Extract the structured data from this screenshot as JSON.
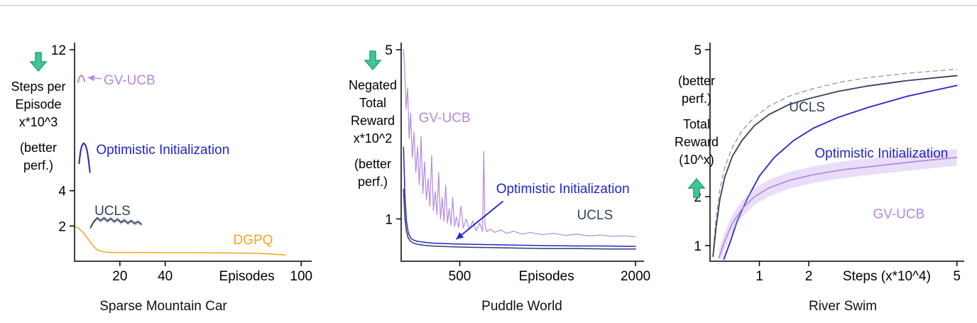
{
  "page": {
    "background": "#ffffff",
    "top_rule_color": "#c4c4c4"
  },
  "colors": {
    "gvucb": "#b18ae0",
    "opt_init": "#2424cf",
    "ucls": "#33415c",
    "dgpq": "#f5a321",
    "dashed": "#979797",
    "arrow_green": "#3ec794",
    "arrow_green_edge": "#1fa377",
    "axis": "#000000"
  },
  "chart_data": [
    {
      "type": "line",
      "title": "Sparse Mountain Car",
      "xlabel": "Episodes",
      "xlabel_at": 76,
      "ylabel_lines": [
        "Steps per",
        "Episode",
        "x*10^3"
      ],
      "better_note_lines": [
        "(better",
        "perf.)"
      ],
      "better_direction": "down",
      "xlim": [
        0,
        104
      ],
      "ylim": [
        0,
        12
      ],
      "xticks": [
        20,
        40,
        100
      ],
      "yticks": [
        2,
        4,
        12
      ],
      "grid": false,
      "legend_position": "inline-annotations",
      "series": [
        {
          "name": "GV-UCB",
          "color_key": "gvucb",
          "width": 2,
          "x": [
            1.5,
            2.2,
            3,
            3.8,
            4.5
          ],
          "y": [
            10.15,
            10.45,
            10.55,
            10.45,
            10.2
          ]
        },
        {
          "name": "Optimistic Initialization",
          "color_key": "opt_init",
          "width": 2,
          "x": [
            2,
            2.6,
            3.2,
            4,
            4.8,
            5.6,
            6.2,
            6.8
          ],
          "y": [
            5.55,
            6.2,
            6.55,
            6.7,
            6.6,
            6.25,
            5.7,
            5.05
          ]
        },
        {
          "name": "UCLS",
          "color_key": "ucls",
          "width": 1.7,
          "band": 0.13,
          "band_color": "rgba(110,120,140,0.3)",
          "x": [
            7,
            8.5,
            10,
            11.5,
            13,
            14.5,
            16,
            17.5,
            19,
            20.5,
            22,
            23.5,
            25,
            26.5,
            28,
            29.5
          ],
          "y": [
            1.9,
            2.25,
            2.45,
            2.3,
            2.45,
            2.28,
            2.42,
            2.25,
            2.38,
            2.2,
            2.33,
            2.16,
            2.3,
            2.14,
            2.24,
            2.1
          ]
        },
        {
          "name": "DGPQ",
          "color_key": "dgpq",
          "width": 1.5,
          "x": [
            0.5,
            2,
            4,
            6,
            8,
            10,
            12,
            15,
            20,
            30,
            40,
            50,
            60,
            70,
            80,
            88,
            93
          ],
          "y": [
            1.95,
            1.85,
            1.6,
            1.25,
            0.9,
            0.65,
            0.55,
            0.5,
            0.5,
            0.5,
            0.49,
            0.49,
            0.48,
            0.47,
            0.45,
            0.4,
            0.35
          ]
        }
      ],
      "annotations": [
        {
          "text": "GV-UCB",
          "color_key": "gvucb",
          "x": 12.8,
          "y": 10.02,
          "anchor": "start",
          "arrow_from": [
            12,
            10.35
          ],
          "arrow_to": [
            5.8,
            10.42
          ],
          "arrow_width": 1.4
        },
        {
          "text": "Optimistic Initialization",
          "color_key": "opt_init",
          "x": 9.5,
          "y": 6.08,
          "anchor": "start"
        },
        {
          "text": "UCLS",
          "color_key": "ucls",
          "x": 8.8,
          "y": 2.62,
          "anchor": "start"
        },
        {
          "text": "DGPQ",
          "color_key": "dgpq",
          "x": 70,
          "y": 0.97,
          "anchor": "start"
        }
      ]
    },
    {
      "type": "line",
      "title": "Puddle World",
      "xlabel": "Episodes",
      "xlabel_at": 1240,
      "ylabel_lines": [
        "Negated",
        "Total",
        "Reward",
        "x*10^2"
      ],
      "better_note_lines": [
        "(better",
        "perf.)"
      ],
      "better_direction": "down",
      "xlim": [
        0,
        2060
      ],
      "ylim": [
        0,
        5
      ],
      "xticks": [
        500,
        2000
      ],
      "yticks": [
        1,
        5
      ],
      "grid": false,
      "legend_position": "inline-annotations",
      "series": [
        {
          "name": "GV-UCB",
          "color_key": "gvucb",
          "width": 1.2,
          "x": [
            20,
            30,
            42,
            55,
            68,
            80,
            95,
            110,
            125,
            140,
            155,
            170,
            185,
            200,
            215,
            230,
            245,
            260,
            275,
            290,
            305,
            320,
            335,
            350,
            365,
            380,
            395,
            410,
            425,
            440,
            455,
            470,
            490,
            510,
            530,
            555,
            580,
            610,
            640,
            670,
            695,
            705,
            715,
            730,
            760,
            800,
            850,
            900,
            960,
            1030,
            1100,
            1200,
            1300,
            1400,
            1500,
            1600,
            1700,
            1800,
            1900,
            2000
          ],
          "y": [
            5.0,
            4.55,
            3.6,
            4.1,
            2.9,
            3.5,
            2.45,
            3.05,
            2.1,
            2.7,
            1.8,
            2.95,
            1.6,
            2.35,
            1.45,
            1.95,
            1.3,
            2.5,
            1.2,
            1.65,
            1.1,
            2.1,
            1.0,
            1.5,
            0.95,
            1.8,
            0.9,
            1.25,
            0.85,
            1.5,
            0.82,
            1.05,
            0.8,
            1.3,
            0.78,
            1.0,
            0.75,
            0.95,
            0.72,
            0.9,
            0.7,
            2.6,
            0.85,
            0.7,
            0.76,
            0.68,
            0.74,
            0.66,
            0.71,
            0.64,
            0.68,
            0.63,
            0.66,
            0.61,
            0.64,
            0.6,
            0.62,
            0.59,
            0.6,
            0.58
          ]
        },
        {
          "name": "Optimistic Initialization",
          "color_key": "opt_init",
          "width": 1.5,
          "x": [
            20,
            32,
            45,
            60,
            80,
            105,
            140,
            190,
            260,
            350,
            450,
            600,
            800,
            1000,
            1250,
            1500,
            1750,
            2000
          ],
          "y": [
            2.7,
            1.55,
            0.95,
            0.68,
            0.55,
            0.5,
            0.47,
            0.45,
            0.43,
            0.42,
            0.41,
            0.4,
            0.39,
            0.38,
            0.37,
            0.36,
            0.36,
            0.35
          ]
        },
        {
          "name": "UCLS",
          "color_key": "ucls",
          "width": 1.5,
          "x": [
            20,
            32,
            45,
            60,
            80,
            105,
            140,
            190,
            260,
            350,
            450,
            600,
            800,
            1000,
            1250,
            1500,
            1750,
            2000
          ],
          "y": [
            1.7,
            1.0,
            0.7,
            0.55,
            0.47,
            0.43,
            0.4,
            0.38,
            0.36,
            0.35,
            0.34,
            0.33,
            0.32,
            0.31,
            0.3,
            0.3,
            0.29,
            0.29
          ]
        }
      ],
      "annotations": [
        {
          "text": "GV-UCB",
          "color_key": "gvucb",
          "x": 150,
          "y": 3.29,
          "anchor": "start"
        },
        {
          "text": "Optimistic Initialization",
          "color_key": "opt_init",
          "x": 810,
          "y": 1.61,
          "anchor": "start",
          "arrow_from": [
            870,
            1.42
          ],
          "arrow_to": [
            470,
            0.52
          ],
          "arrow_width": 1.8
        },
        {
          "text": "UCLS",
          "color_key": "ucls",
          "x": 1500,
          "y": 0.99,
          "anchor": "start"
        }
      ]
    },
    {
      "type": "line",
      "title": "River Swim",
      "xlabel": "Steps (x*10^4)",
      "xlabel_at": 3.58,
      "ylabel_lines": [
        "Total",
        "Reward",
        "(10^x)"
      ],
      "better_note_lines": [
        "(better",
        "perf.)"
      ],
      "better_direction": "up",
      "xlim": [
        0,
        5.12
      ],
      "ylim": [
        0.68,
        5
      ],
      "xticks": [
        1,
        2,
        5
      ],
      "yticks": [
        1,
        2,
        5
      ],
      "grid": false,
      "legend_position": "inline-annotations",
      "series": [
        {
          "name": "dashed-reference",
          "color_key": "dashed",
          "width": 1.3,
          "dash": "6,5",
          "x": [
            0.07,
            0.12,
            0.2,
            0.3,
            0.45,
            0.65,
            0.9,
            1.2,
            1.6,
            2.0,
            2.6,
            3.2,
            4.0,
            5.0
          ],
          "y": [
            0.95,
            1.55,
            2.15,
            2.6,
            3.0,
            3.35,
            3.62,
            3.85,
            4.05,
            4.18,
            4.33,
            4.43,
            4.52,
            4.6
          ]
        },
        {
          "name": "UCLS",
          "color_key": "ucls",
          "width": 1.8,
          "x": [
            0.06,
            0.12,
            0.2,
            0.3,
            0.45,
            0.65,
            0.9,
            1.2,
            1.6,
            2.0,
            2.6,
            3.2,
            4.0,
            5.0
          ],
          "y": [
            0.78,
            1.35,
            1.95,
            2.4,
            2.82,
            3.15,
            3.45,
            3.68,
            3.88,
            4.0,
            4.15,
            4.26,
            4.37,
            4.47
          ]
        },
        {
          "name": "Optimistic Initialization",
          "color_key": "opt_init",
          "width": 1.8,
          "x": [
            0.28,
            0.4,
            0.55,
            0.75,
            1.0,
            1.3,
            1.7,
            2.1,
            2.6,
            3.2,
            4.0,
            5.0
          ],
          "y": [
            0.72,
            1.05,
            1.5,
            1.95,
            2.42,
            2.8,
            3.15,
            3.4,
            3.62,
            3.82,
            4.05,
            4.27
          ]
        },
        {
          "name": "GV-UCB",
          "color_key": "gvucb",
          "width": 1.7,
          "band": 0.17,
          "band_color": "rgba(186,152,230,0.32)",
          "x": [
            0.18,
            0.3,
            0.45,
            0.65,
            0.9,
            1.2,
            1.6,
            2.1,
            2.7,
            3.4,
            4.2,
            5.0
          ],
          "y": [
            0.75,
            1.1,
            1.45,
            1.75,
            2.0,
            2.18,
            2.33,
            2.45,
            2.55,
            2.63,
            2.72,
            2.8
          ]
        }
      ],
      "annotations": [
        {
          "text": "UCLS",
          "color_key": "ucls",
          "x": 1.6,
          "y": 3.74,
          "anchor": "start"
        },
        {
          "text": "Optimistic Initialization",
          "color_key": "opt_init",
          "x": 2.12,
          "y": 2.8,
          "anchor": "start"
        },
        {
          "text": "GV-UCB",
          "color_key": "gvucb",
          "x": 3.3,
          "y": 1.56,
          "anchor": "start"
        }
      ]
    }
  ]
}
